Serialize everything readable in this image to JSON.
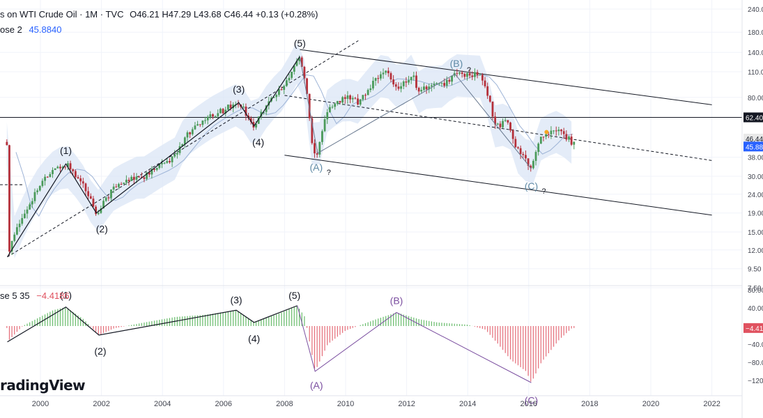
{
  "header": {
    "symbol_line": "s on WTI Crude Oil · 1M · TVC",
    "ohlc": "O46.21  H47.29  L43.68  C46.44  +0.13 (+0.28%)",
    "ma_label": "ose 2",
    "ma_value": "45.8840",
    "osc_label": "se 5 35",
    "osc_value": "−4.4186"
  },
  "watermark": "radingView",
  "colors": {
    "up": "#4a9a5a",
    "down": "#b5303a",
    "ma": "#2962ff",
    "band": "#dbe6f6",
    "osc_up": "#4caf50",
    "osc_down": "#e05260",
    "wave_purple": "#7b4fa0",
    "wave_teal": "#5f8aa6"
  },
  "price_axis": {
    "ticks": [
      "240.00",
      "180.00",
      "140.00",
      "110.00",
      "80.00",
      "62.40",
      "46.44",
      "45.88",
      "38.00",
      "30.00",
      "24.00",
      "19.00",
      "15.00",
      "12.00",
      "9.50",
      "7.50"
    ],
    "scale": "log",
    "current_price_label": "46.44",
    "ma_price_label": "45.88",
    "level_label": "62.40"
  },
  "osc_axis": {
    "ticks": [
      "80.00",
      "40.00",
      "0.00",
      "−40.00",
      "−80.00",
      "−120.00"
    ],
    "current_label": "−4.41"
  },
  "time_axis": {
    "labels": [
      "2000",
      "2002",
      "2004",
      "2006",
      "2008",
      "2010",
      "2012",
      "2014",
      "2016",
      "2018",
      "2020",
      "2022"
    ]
  },
  "chart_data": {
    "type": "candlestick",
    "title": "WTI Crude Oil · 1M · TVC",
    "y_scale": "log",
    "ylim": [
      7.5,
      240
    ],
    "xlim": [
      "1998-10",
      "2022-12"
    ],
    "price_path": [
      [
        "1998-12",
        11
      ],
      [
        "1999-06",
        18
      ],
      [
        "2000-01",
        27
      ],
      [
        "2000-06",
        32
      ],
      [
        "2000-11",
        35
      ],
      [
        "2001-05",
        28
      ],
      [
        "2001-11",
        19
      ],
      [
        "2002-06",
        26
      ],
      [
        "2003-03",
        30
      ],
      [
        "2003-06",
        30
      ],
      [
        "2004-06",
        38
      ],
      [
        "2004-10",
        50
      ],
      [
        "2005-09",
        64
      ],
      [
        "2006-07",
        75
      ],
      [
        "2007-01",
        56
      ],
      [
        "2007-07",
        76
      ],
      [
        "2008-01",
        92
      ],
      [
        "2008-07",
        133
      ],
      [
        "2008-12",
        42
      ],
      [
        "2009-02",
        40
      ],
      [
        "2009-06",
        70
      ],
      [
        "2010-01",
        80
      ],
      [
        "2010-06",
        76
      ],
      [
        "2011-04",
        110
      ],
      [
        "2011-10",
        90
      ],
      [
        "2012-03",
        107
      ],
      [
        "2012-06",
        85
      ],
      [
        "2012-09",
        92
      ],
      [
        "2013-03",
        93
      ],
      [
        "2013-08",
        107
      ],
      [
        "2014-06",
        105
      ],
      [
        "2014-12",
        55
      ],
      [
        "2015-05",
        60
      ],
      [
        "2015-08",
        42
      ],
      [
        "2015-12",
        37
      ],
      [
        "2016-02",
        33
      ],
      [
        "2016-06",
        49
      ],
      [
        "2016-12",
        53
      ],
      [
        "2017-03",
        50
      ],
      [
        "2017-06",
        46
      ]
    ],
    "last_bar": {
      "open": 46.21,
      "high": 47.29,
      "low": 43.68,
      "close": 46.44,
      "change": 0.13,
      "change_pct": 0.28
    },
    "moving_average": {
      "label": "ose 2",
      "value": 45.884
    },
    "horizontal_level": 62.4,
    "trend_channel": {
      "upper": [
        [
          "2008-07",
          145
        ],
        [
          "2022-01",
          73
        ]
      ],
      "middle": [
        [
          "2008-01",
          82
        ],
        [
          "2022-01",
          36.5
        ]
      ],
      "lower": [
        [
          "2008-01",
          39
        ],
        [
          "2022-01",
          18.5
        ]
      ]
    },
    "rising_channel": [
      [
        "1998-12",
        11
      ],
      [
        "2010-06",
        162
      ]
    ],
    "impulse_waves": [
      {
        "label": "(1)",
        "x": "2000-11",
        "price": 35
      },
      {
        "label": "(2)",
        "x": "2001-11",
        "price": 19
      },
      {
        "label": "(3)",
        "x": "2006-07",
        "price": 75
      },
      {
        "label": "(4)",
        "x": "2007-01",
        "price": 56
      },
      {
        "label": "(5)",
        "x": "2008-07",
        "price": 133
      }
    ],
    "corrective_waves": [
      {
        "label": "(A)",
        "x": "2009-02",
        "price": 40,
        "note": "?"
      },
      {
        "label": "(B)",
        "x": "2013-08",
        "price": 107,
        "note": "?"
      },
      {
        "label": "(C)",
        "x": "2016-02",
        "price": 33,
        "note": "?"
      }
    ],
    "oscillator": {
      "label": "se 5 35",
      "current": -4.4186,
      "ylim": [
        -130,
        85
      ],
      "path": [
        [
          "1998-12",
          -35
        ],
        [
          "1999-06",
          0
        ],
        [
          "2000-06",
          35
        ],
        [
          "2000-11",
          42
        ],
        [
          "2001-06",
          15
        ],
        [
          "2001-12",
          -20
        ],
        [
          "2002-06",
          -5
        ],
        [
          "2003-06",
          8
        ],
        [
          "2004-06",
          20
        ],
        [
          "2005-06",
          25
        ],
        [
          "2006-06",
          35
        ],
        [
          "2007-01",
          8
        ],
        [
          "2007-12",
          30
        ],
        [
          "2008-06",
          45
        ],
        [
          "2008-09",
          20
        ],
        [
          "2009-01",
          -100
        ],
        [
          "2009-06",
          -40
        ],
        [
          "2010-01",
          -10
        ],
        [
          "2011-01",
          15
        ],
        [
          "2011-09",
          30
        ],
        [
          "2012-06",
          15
        ],
        [
          "2013-01",
          8
        ],
        [
          "2014-01",
          3
        ],
        [
          "2014-08",
          -8
        ],
        [
          "2015-01",
          -40
        ],
        [
          "2015-06",
          -75
        ],
        [
          "2015-12",
          -100
        ],
        [
          "2016-02",
          -125
        ],
        [
          "2016-06",
          -80
        ],
        [
          "2017-01",
          -30
        ],
        [
          "2017-06",
          -4.4
        ]
      ],
      "waves": [
        {
          "label": "(1)",
          "x": "2000-11",
          "value": 42
        },
        {
          "label": "(2)",
          "x": "2001-12",
          "value": -20
        },
        {
          "label": "(3)",
          "x": "2006-06",
          "value": 35
        },
        {
          "label": "(4)",
          "x": "2007-01",
          "value": 8
        },
        {
          "label": "(5)",
          "x": "2008-06",
          "value": 45
        },
        {
          "label": "(A)",
          "x": "2009-01",
          "value": -100
        },
        {
          "label": "(B)",
          "x": "2011-09",
          "value": 30
        },
        {
          "label": "(C)",
          "x": "2016-02",
          "value": -125
        }
      ]
    }
  }
}
